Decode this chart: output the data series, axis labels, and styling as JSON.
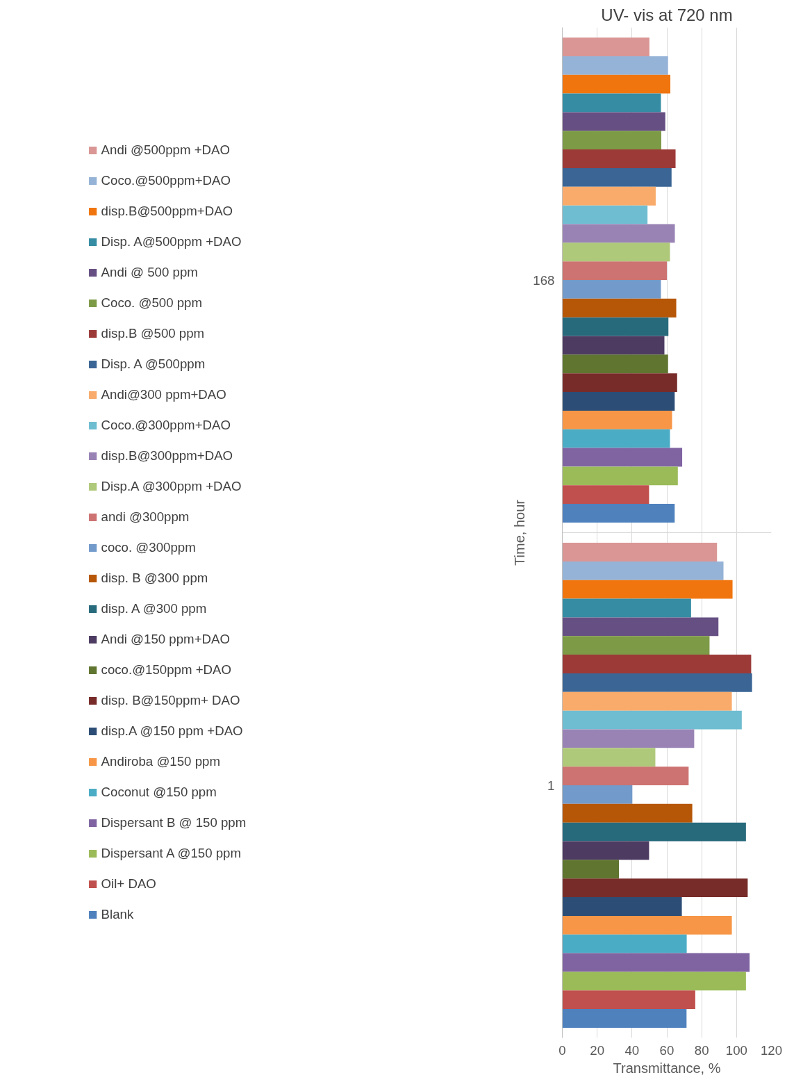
{
  "chart_data": {
    "type": "bar",
    "orientation": "horizontal",
    "title": "UV- vis at 720 nm",
    "xlabel": "Transmittance, %",
    "ylabel": "Time, hour",
    "categories": [
      "168",
      "1"
    ],
    "xlim": [
      0,
      120
    ],
    "xticks": [
      0,
      20,
      40,
      60,
      80,
      100,
      120
    ],
    "grid": true,
    "legend": "left",
    "series": [
      {
        "name": "Andi @500ppm +DAO",
        "color": "#d99694",
        "values": [
          50.0,
          88.8
        ]
      },
      {
        "name": "Coco.@500ppm+DAO",
        "color": "#95b3d7",
        "values": [
          60.7,
          92.5
        ]
      },
      {
        "name": "disp.B@500ppm+DAO",
        "color": "#f0750f",
        "values": [
          62.0,
          97.7
        ]
      },
      {
        "name": "Disp. A@500ppm +DAO",
        "color": "#358ca3",
        "values": [
          56.6,
          73.9
        ]
      },
      {
        "name": "Andi @ 500 ppm",
        "color": "#664f83",
        "values": [
          59.1,
          89.6
        ]
      },
      {
        "name": "Coco. @500 ppm",
        "color": "#7d9a47",
        "values": [
          56.8,
          84.5
        ]
      },
      {
        "name": "disp.B @500 ppm",
        "color": "#9c3a38",
        "values": [
          65.0,
          108.4
        ]
      },
      {
        "name": "Disp. A @500ppm",
        "color": "#3a6595",
        "values": [
          62.7,
          108.9
        ]
      },
      {
        "name": "Andi@300 ppm+DAO",
        "color": "#f9ab6b",
        "values": [
          53.6,
          97.3
        ]
      },
      {
        "name": "Coco.@300ppm+DAO",
        "color": "#6fbdd1",
        "values": [
          48.9,
          103.0
        ]
      },
      {
        "name": "disp.B@300ppm+DAO",
        "color": "#9983b5",
        "values": [
          64.6,
          75.7
        ]
      },
      {
        "name": "Disp.A @300ppm +DAO",
        "color": "#afc97a",
        "values": [
          61.8,
          53.4
        ]
      },
      {
        "name": "andi @300ppm",
        "color": "#cd7371",
        "values": [
          60.0,
          72.5
        ]
      },
      {
        "name": "coco. @300ppm",
        "color": "#729aca",
        "values": [
          56.6,
          40.2
        ]
      },
      {
        "name": "disp. B @300 ppm",
        "color": "#b65708",
        "values": [
          65.4,
          74.6
        ]
      },
      {
        "name": "disp. A @300 ppm",
        "color": "#276a7c",
        "values": [
          60.9,
          105.4
        ]
      },
      {
        "name": "Andi @150 ppm+DAO",
        "color": "#4d3b62",
        "values": [
          58.6,
          49.8
        ]
      },
      {
        "name": "coco.@150ppm +DAO",
        "color": "#5f7530",
        "values": [
          60.7,
          32.5
        ]
      },
      {
        "name": "disp. B@150ppm+ DAO",
        "color": "#772c2a",
        "values": [
          65.9,
          106.4
        ]
      },
      {
        "name": "disp.A @150 ppm +DAO",
        "color": "#2c4d75",
        "values": [
          64.5,
          68.6
        ]
      },
      {
        "name": "Andiroba @150 ppm",
        "color": "#f79646",
        "values": [
          63.0,
          97.3
        ]
      },
      {
        "name": "Coconut @150 ppm",
        "color": "#4bacc6",
        "values": [
          61.8,
          71.4
        ]
      },
      {
        "name": "Dispersant B @ 150 ppm",
        "color": "#8064a2",
        "values": [
          68.8,
          107.5
        ]
      },
      {
        "name": "Dispersant A @150 ppm",
        "color": "#9bbb59",
        "values": [
          66.3,
          105.4
        ]
      },
      {
        "name": "Oil+ DAO",
        "color": "#c0504d",
        "values": [
          49.8,
          76.3
        ]
      },
      {
        "name": "Blank",
        "color": "#4f81bd",
        "values": [
          64.5,
          71.3
        ]
      }
    ]
  }
}
